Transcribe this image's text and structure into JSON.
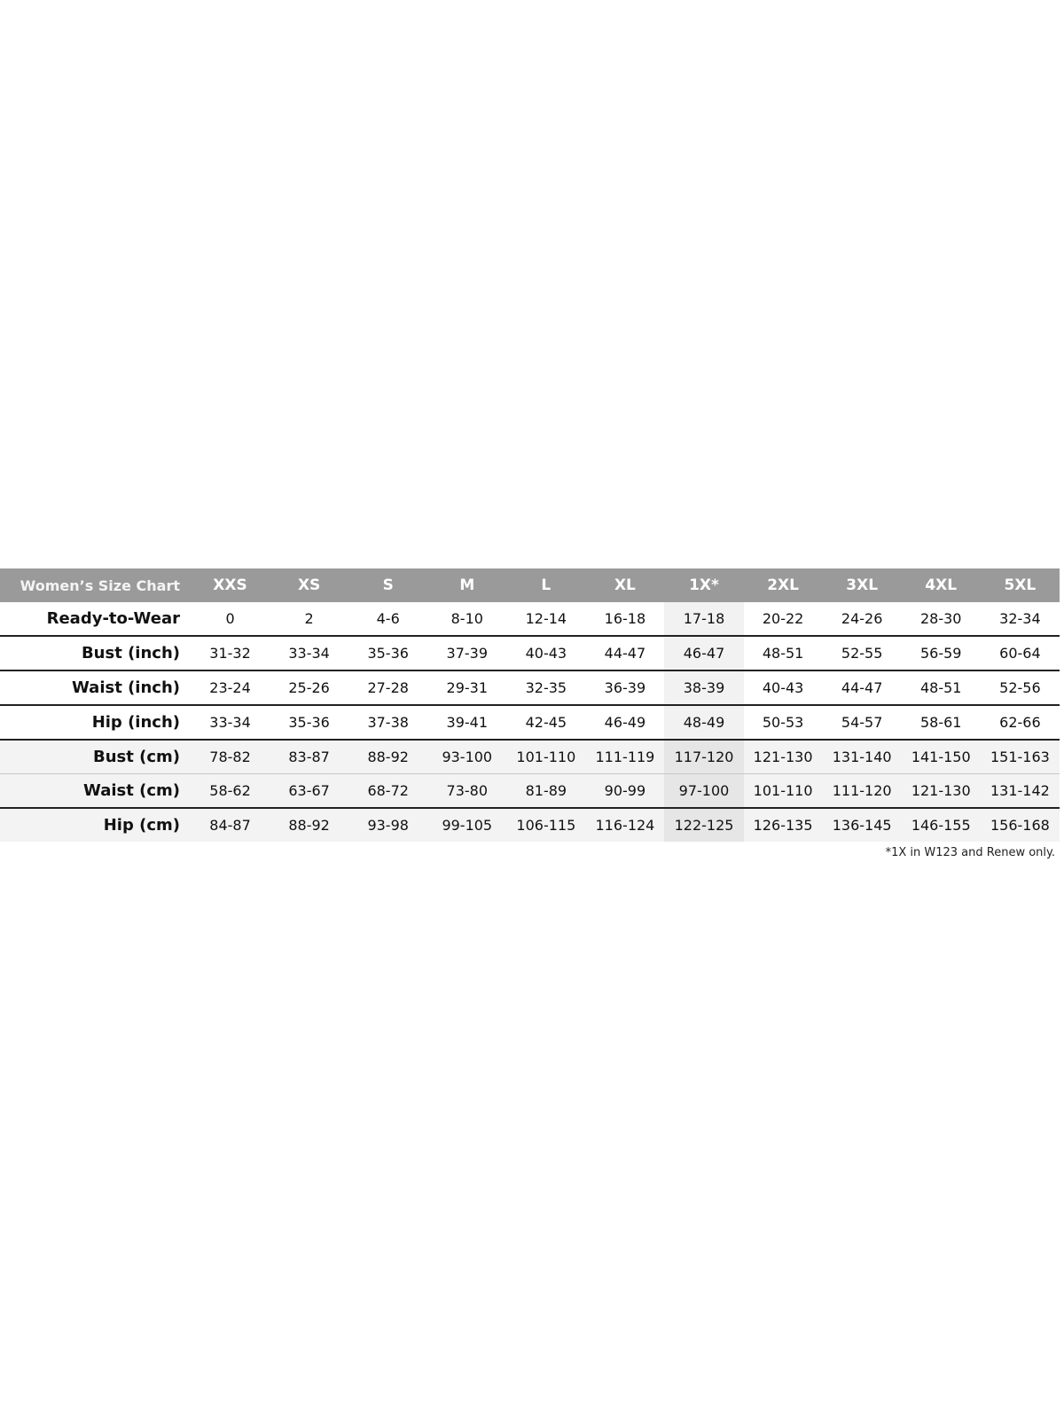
{
  "chart_data": {
    "type": "table",
    "title": "Women’s Size Chart",
    "columns": [
      "XXS",
      "XS",
      "S",
      "M",
      "L",
      "XL",
      "1X*",
      "2XL",
      "3XL",
      "4XL",
      "5XL"
    ],
    "rows": [
      {
        "label": "Ready-to-Wear",
        "values": [
          "0",
          "2",
          "4-6",
          "8-10",
          "12-14",
          "16-18",
          "17-18",
          "20-22",
          "24-26",
          "28-30",
          "32-34"
        ]
      },
      {
        "label": "Bust (inch)",
        "values": [
          "31-32",
          "33-34",
          "35-36",
          "37-39",
          "40-43",
          "44-47",
          "46-47",
          "48-51",
          "52-55",
          "56-59",
          "60-64"
        ]
      },
      {
        "label": "Waist (inch)",
        "values": [
          "23-24",
          "25-26",
          "27-28",
          "29-31",
          "32-35",
          "36-39",
          "38-39",
          "40-43",
          "44-47",
          "48-51",
          "52-56"
        ]
      },
      {
        "label": "Hip (inch)",
        "values": [
          "33-34",
          "35-36",
          "37-38",
          "39-41",
          "42-45",
          "46-49",
          "48-49",
          "50-53",
          "54-57",
          "58-61",
          "62-66"
        ]
      },
      {
        "label": "Bust (cm)",
        "values": [
          "78-82",
          "83-87",
          "88-92",
          "93-100",
          "101-110",
          "111-119",
          "117-120",
          "121-130",
          "131-140",
          "141-150",
          "151-163"
        ]
      },
      {
        "label": "Waist (cm)",
        "values": [
          "58-62",
          "63-67",
          "68-72",
          "73-80",
          "81-89",
          "90-99",
          "97-100",
          "101-110",
          "111-120",
          "121-130",
          "131-142"
        ]
      },
      {
        "label": "Hip (cm)",
        "values": [
          "84-87",
          "88-92",
          "93-98",
          "99-105",
          "106-115",
          "116-124",
          "122-125",
          "126-135",
          "136-145",
          "146-155",
          "156-168"
        ]
      }
    ],
    "highlighted_column": "1X*",
    "footnote": "*1X in W123 and Renew only."
  },
  "colors": {
    "header_bg": "#9a9a9a",
    "cm_rows_bg": "#f3f3f3",
    "highlight_bg": "#e6e6e6"
  }
}
